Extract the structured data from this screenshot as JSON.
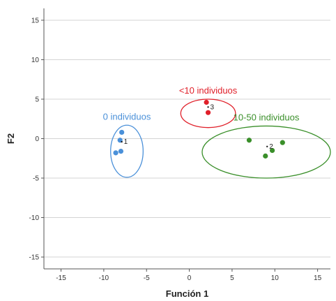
{
  "chart_data": {
    "type": "scatter",
    "title": "",
    "xlabel": "Función 1",
    "ylabel": "F2",
    "xlim": [
      -17,
      16.5
    ],
    "ylim": [
      -16.5,
      16.5
    ],
    "xticks": [
      -15,
      -10,
      -5,
      0,
      5,
      10,
      15
    ],
    "yticks": [
      -15,
      -10,
      -5,
      0,
      5,
      10,
      15
    ],
    "grid": "horizontal",
    "series": [
      {
        "name": "0 individuos",
        "color": "#4a90d9",
        "centroid": {
          "label": "1",
          "x": -7.9,
          "y": -0.4
        },
        "ellipse": {
          "cx": -7.3,
          "cy": -1.6,
          "rx": 1.9,
          "ry": 3.3
        },
        "points": [
          {
            "x": -7.9,
            "y": 0.8
          },
          {
            "x": -8.1,
            "y": -0.2
          },
          {
            "x": -8.0,
            "y": -1.6
          },
          {
            "x": -8.6,
            "y": -1.8
          }
        ]
      },
      {
        "name": "10-50 individuos",
        "color": "#3a8f2a",
        "centroid": {
          "label": "2",
          "x": 9.1,
          "y": -1.0
        },
        "ellipse": {
          "cx": 9.0,
          "cy": -1.7,
          "rx": 7.5,
          "ry": 3.3
        },
        "points": [
          {
            "x": 7.0,
            "y": -0.2
          },
          {
            "x": 10.9,
            "y": -0.5
          },
          {
            "x": 9.7,
            "y": -1.5
          },
          {
            "x": 8.9,
            "y": -2.2
          }
        ]
      },
      {
        "name": "<10 individuos",
        "color": "#e0202a",
        "centroid": {
          "label": "3",
          "x": 2.2,
          "y": 4.0
        },
        "ellipse": {
          "cx": 2.2,
          "cy": 3.2,
          "rx": 3.2,
          "ry": 1.8
        },
        "points": [
          {
            "x": 2.0,
            "y": 4.6
          },
          {
            "x": 2.2,
            "y": 3.3
          }
        ]
      }
    ]
  }
}
